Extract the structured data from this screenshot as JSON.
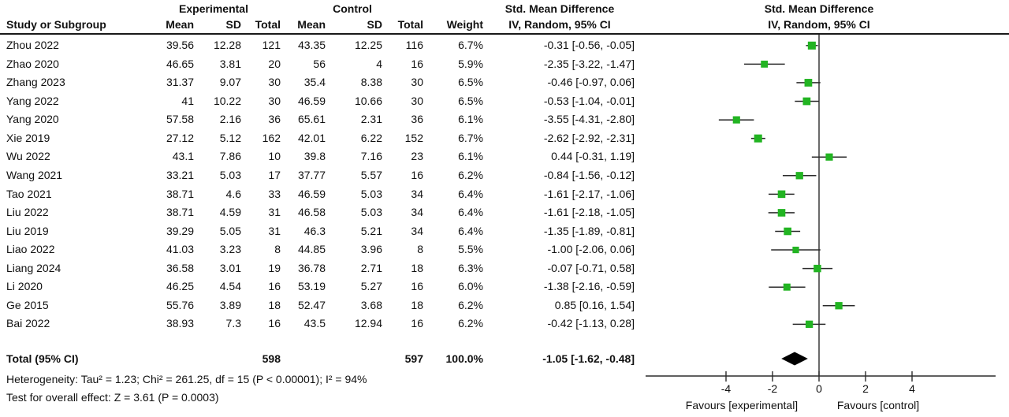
{
  "header": {
    "experimental_group": "Experimental",
    "control_group": "Control",
    "smd_text_col": "Std. Mean Difference",
    "smd_plot_col": "Std. Mean Difference",
    "columns": {
      "study": "Study or Subgroup",
      "mean": "Mean",
      "sd": "SD",
      "total": "Total",
      "mean2": "Mean",
      "sd2": "SD",
      "total2": "Total",
      "weight": "Weight",
      "ci": "IV, Random, 95% CI",
      "ci_plot": "IV, Random, 95% CI"
    }
  },
  "chart_data": {
    "type": "forest",
    "effect_measure": "Std. Mean Difference",
    "model": "IV, Random, 95% CI",
    "studies": [
      {
        "name": "Zhou 2022",
        "exp_mean": "39.56",
        "exp_sd": "12.28",
        "exp_total": "121",
        "ctrl_mean": "43.35",
        "ctrl_sd": "12.25",
        "ctrl_total": "116",
        "weight": "6.7%",
        "ci_text": "-0.31 [-0.56, -0.05]",
        "est": -0.31,
        "lo": -0.56,
        "hi": -0.05
      },
      {
        "name": "Zhao 2020",
        "exp_mean": "46.65",
        "exp_sd": "3.81",
        "exp_total": "20",
        "ctrl_mean": "56",
        "ctrl_sd": "4",
        "ctrl_total": "16",
        "weight": "5.9%",
        "ci_text": "-2.35 [-3.22, -1.47]",
        "est": -2.35,
        "lo": -3.22,
        "hi": -1.47
      },
      {
        "name": "Zhang 2023",
        "exp_mean": "31.37",
        "exp_sd": "9.07",
        "exp_total": "30",
        "ctrl_mean": "35.4",
        "ctrl_sd": "8.38",
        "ctrl_total": "30",
        "weight": "6.5%",
        "ci_text": "-0.46 [-0.97, 0.06]",
        "est": -0.46,
        "lo": -0.97,
        "hi": 0.06
      },
      {
        "name": "Yang 2022",
        "exp_mean": "41",
        "exp_sd": "10.22",
        "exp_total": "30",
        "ctrl_mean": "46.59",
        "ctrl_sd": "10.66",
        "ctrl_total": "30",
        "weight": "6.5%",
        "ci_text": "-0.53 [-1.04, -0.01]",
        "est": -0.53,
        "lo": -1.04,
        "hi": -0.01
      },
      {
        "name": "Yang 2020",
        "exp_mean": "57.58",
        "exp_sd": "2.16",
        "exp_total": "36",
        "ctrl_mean": "65.61",
        "ctrl_sd": "2.31",
        "ctrl_total": "36",
        "weight": "6.1%",
        "ci_text": "-3.55 [-4.31, -2.80]",
        "est": -3.55,
        "lo": -4.31,
        "hi": -2.8
      },
      {
        "name": "Xie 2019",
        "exp_mean": "27.12",
        "exp_sd": "5.12",
        "exp_total": "162",
        "ctrl_mean": "42.01",
        "ctrl_sd": "6.22",
        "ctrl_total": "152",
        "weight": "6.7%",
        "ci_text": "-2.62 [-2.92, -2.31]",
        "est": -2.62,
        "lo": -2.92,
        "hi": -2.31
      },
      {
        "name": "Wu 2022",
        "exp_mean": "43.1",
        "exp_sd": "7.86",
        "exp_total": "10",
        "ctrl_mean": "39.8",
        "ctrl_sd": "7.16",
        "ctrl_total": "23",
        "weight": "6.1%",
        "ci_text": "0.44 [-0.31, 1.19]",
        "est": 0.44,
        "lo": -0.31,
        "hi": 1.19
      },
      {
        "name": "Wang 2021",
        "exp_mean": "33.21",
        "exp_sd": "5.03",
        "exp_total": "17",
        "ctrl_mean": "37.77",
        "ctrl_sd": "5.57",
        "ctrl_total": "16",
        "weight": "6.2%",
        "ci_text": "-0.84 [-1.56, -0.12]",
        "est": -0.84,
        "lo": -1.56,
        "hi": -0.12
      },
      {
        "name": "Tao 2021",
        "exp_mean": "38.71",
        "exp_sd": "4.6",
        "exp_total": "33",
        "ctrl_mean": "46.59",
        "ctrl_sd": "5.03",
        "ctrl_total": "34",
        "weight": "6.4%",
        "ci_text": "-1.61 [-2.17, -1.06]",
        "est": -1.61,
        "lo": -2.17,
        "hi": -1.06
      },
      {
        "name": "Liu 2022",
        "exp_mean": "38.71",
        "exp_sd": "4.59",
        "exp_total": "31",
        "ctrl_mean": "46.58",
        "ctrl_sd": "5.03",
        "ctrl_total": "34",
        "weight": "6.4%",
        "ci_text": "-1.61 [-2.18, -1.05]",
        "est": -1.61,
        "lo": -2.18,
        "hi": -1.05
      },
      {
        "name": "Liu 2019",
        "exp_mean": "39.29",
        "exp_sd": "5.05",
        "exp_total": "31",
        "ctrl_mean": "46.3",
        "ctrl_sd": "5.21",
        "ctrl_total": "34",
        "weight": "6.4%",
        "ci_text": "-1.35 [-1.89, -0.81]",
        "est": -1.35,
        "lo": -1.89,
        "hi": -0.81
      },
      {
        "name": "Liao 2022",
        "exp_mean": "41.03",
        "exp_sd": "3.23",
        "exp_total": "8",
        "ctrl_mean": "44.85",
        "ctrl_sd": "3.96",
        "ctrl_total": "8",
        "weight": "5.5%",
        "ci_text": "-1.00 [-2.06, 0.06]",
        "est": -1.0,
        "lo": -2.06,
        "hi": 0.06
      },
      {
        "name": "Liang 2024",
        "exp_mean": "36.58",
        "exp_sd": "3.01",
        "exp_total": "19",
        "ctrl_mean": "36.78",
        "ctrl_sd": "2.71",
        "ctrl_total": "18",
        "weight": "6.3%",
        "ci_text": "-0.07 [-0.71, 0.58]",
        "est": -0.07,
        "lo": -0.71,
        "hi": 0.58
      },
      {
        "name": "Li 2020",
        "exp_mean": "46.25",
        "exp_sd": "4.54",
        "exp_total": "16",
        "ctrl_mean": "53.19",
        "ctrl_sd": "5.27",
        "ctrl_total": "16",
        "weight": "6.0%",
        "ci_text": "-1.38 [-2.16, -0.59]",
        "est": -1.38,
        "lo": -2.16,
        "hi": -0.59
      },
      {
        "name": "Ge 2015",
        "exp_mean": "55.76",
        "exp_sd": "3.89",
        "exp_total": "18",
        "ctrl_mean": "52.47",
        "ctrl_sd": "3.68",
        "ctrl_total": "18",
        "weight": "6.2%",
        "ci_text": "0.85 [0.16, 1.54]",
        "est": 0.85,
        "lo": 0.16,
        "hi": 1.54
      },
      {
        "name": "Bai 2022",
        "exp_mean": "38.93",
        "exp_sd": "7.3",
        "exp_total": "16",
        "ctrl_mean": "43.5",
        "ctrl_sd": "12.94",
        "ctrl_total": "16",
        "weight": "6.2%",
        "ci_text": "-0.42 [-1.13, 0.28]",
        "est": -0.42,
        "lo": -1.13,
        "hi": 0.28
      }
    ],
    "total": {
      "label": "Total (95% CI)",
      "exp_total": "598",
      "ctrl_total": "597",
      "weight": "100.0%",
      "ci_text": "-1.05 [-1.62, -0.48]",
      "est": -1.05,
      "lo": -1.62,
      "hi": -0.48
    },
    "heterogeneity": "Heterogeneity: Tau² = 1.23; Chi² = 261.25, df = 15 (P < 0.00001); I² = 94%",
    "overall_effect": "Test for overall effect: Z = 3.61 (P = 0.0003)",
    "axis": {
      "ticks": [
        -4,
        -2,
        0,
        2,
        4
      ],
      "tick_labels": [
        "-4",
        "-2",
        "0",
        "2",
        "4"
      ],
      "range": [
        -7.5,
        7.6
      ],
      "zero_line": true,
      "favours_left": "Favours [experimental]",
      "favours_right": "Favours [control]"
    },
    "colors": {
      "marker_green": "#22b422",
      "ci_line": "#2b2b2b",
      "diamond": "#000000",
      "axis": "#2b2b2b"
    }
  }
}
